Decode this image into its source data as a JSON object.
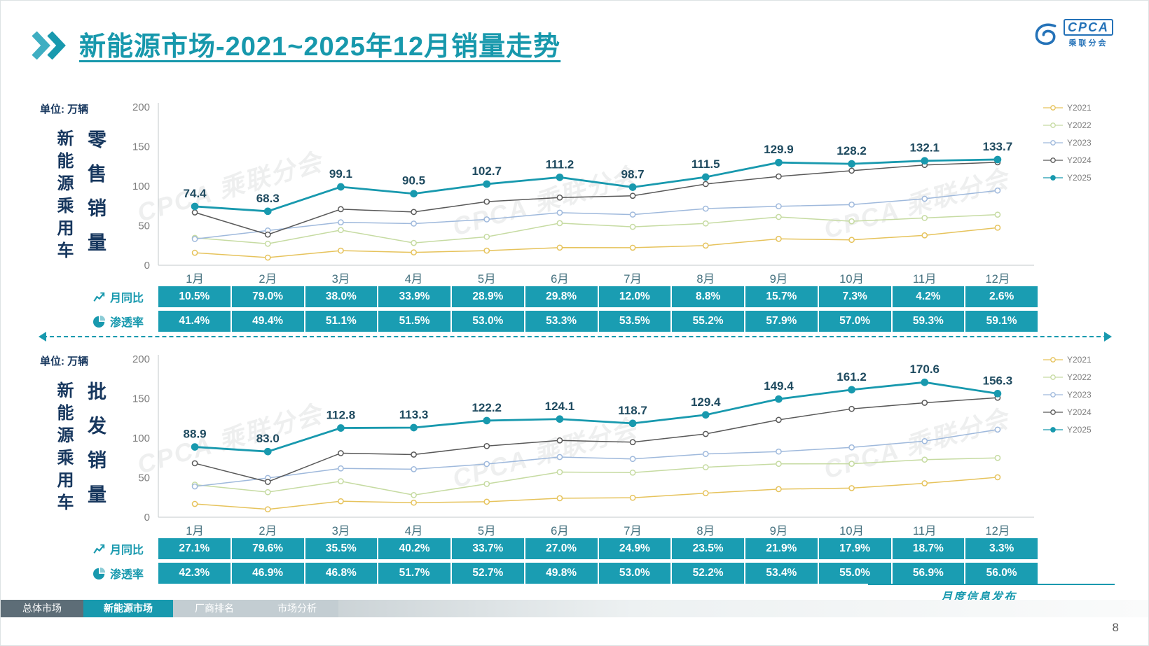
{
  "header": {
    "title": "新能源市场-2021~2025年12月销量走势"
  },
  "logo": {
    "name": "CPCA",
    "subtitle": "乘联分会"
  },
  "watermark": "CPCA 乘联分会",
  "colors": {
    "accent": "#1899AE",
    "table_cell": "#1A9DB2",
    "dark_label": "#17375E",
    "logo_blue": "#2472B8"
  },
  "chart_data": [
    {
      "type": "line",
      "title": "新能源乘用车零售销量",
      "unit_label": "单位: 万辆",
      "side_label": "新能源乘用车",
      "metric_label": "零售销量",
      "ylabel": "万辆",
      "ylim": [
        0,
        200
      ],
      "yticks": [
        0,
        50,
        100,
        150,
        200
      ],
      "grid": false,
      "legend_position": "right",
      "categories": [
        "1月",
        "2月",
        "3月",
        "4月",
        "5月",
        "6月",
        "7月",
        "8月",
        "9月",
        "10月",
        "11月",
        "12月"
      ],
      "series": [
        {
          "name": "Y2021",
          "color": "#E6C35C",
          "values": [
            15.8,
            9.7,
            18.5,
            16.3,
            18.5,
            22.3,
            22.2,
            24.9,
            33.4,
            32.1,
            37.8,
            47.5
          ]
        },
        {
          "name": "Y2022",
          "color": "#C6DBA2",
          "values": [
            34.7,
            27.2,
            44.5,
            28.2,
            36.0,
            53.2,
            48.6,
            52.9,
            61.1,
            55.6,
            59.8,
            64.0
          ]
        },
        {
          "name": "Y2023",
          "color": "#9FB9DC",
          "values": [
            33.2,
            43.9,
            54.3,
            52.7,
            58.0,
            66.5,
            64.1,
            71.6,
            74.6,
            76.7,
            84.1,
            94.5
          ]
        },
        {
          "name": "Y2024",
          "color": "#595959",
          "values": [
            66.8,
            38.8,
            70.9,
            67.4,
            80.4,
            85.6,
            87.8,
            102.7,
            112.3,
            119.6,
            126.8,
            130.2
          ]
        },
        {
          "name": "Y2025",
          "color": "#1899AE",
          "values": [
            74.4,
            68.3,
            99.1,
            90.5,
            102.7,
            111.2,
            98.7,
            111.5,
            129.9,
            128.2,
            132.1,
            133.7
          ],
          "bold": true,
          "labeled": true
        }
      ],
      "rows": [
        {
          "icon": "line-chart-icon",
          "label": "月同比",
          "values": [
            "10.5%",
            "79.0%",
            "38.0%",
            "33.9%",
            "28.9%",
            "29.8%",
            "12.0%",
            "8.8%",
            "15.7%",
            "7.3%",
            "4.2%",
            "2.6%"
          ]
        },
        {
          "icon": "pie-chart-icon",
          "label": "渗透率",
          "values": [
            "41.4%",
            "49.4%",
            "51.1%",
            "51.5%",
            "53.0%",
            "53.3%",
            "53.5%",
            "55.2%",
            "57.9%",
            "57.0%",
            "59.3%",
            "59.1%"
          ]
        }
      ]
    },
    {
      "type": "line",
      "title": "新能源乘用车批发销量",
      "unit_label": "单位: 万辆",
      "side_label": "新能源乘用车",
      "metric_label": "批发销量",
      "ylabel": "万辆",
      "ylim": [
        0,
        200
      ],
      "yticks": [
        0,
        50,
        100,
        150,
        200
      ],
      "grid": false,
      "legend_position": "right",
      "categories": [
        "1月",
        "2月",
        "3月",
        "4月",
        "5月",
        "6月",
        "7月",
        "8月",
        "9月",
        "10月",
        "11月",
        "12月"
      ],
      "series": [
        {
          "name": "Y2021",
          "color": "#E6C35C",
          "values": [
            16.8,
            10.0,
            20.2,
            18.4,
            19.6,
            24.0,
            24.6,
            30.4,
            35.5,
            36.8,
            42.9,
            50.5
          ]
        },
        {
          "name": "Y2022",
          "color": "#C6DBA2",
          "values": [
            41.2,
            31.7,
            45.5,
            28.0,
            42.1,
            57.1,
            56.4,
            63.2,
            67.5,
            67.6,
            72.8,
            75.0
          ]
        },
        {
          "name": "Y2023",
          "color": "#9FB9DC",
          "values": [
            38.9,
            49.6,
            61.7,
            60.7,
            67.3,
            76.1,
            73.7,
            80.0,
            83.0,
            88.3,
            96.2,
            110.8
          ]
        },
        {
          "name": "Y2024",
          "color": "#595959",
          "values": [
            68.2,
            44.7,
            81.0,
            79.2,
            90.0,
            97.1,
            94.9,
            105.3,
            123.1,
            137.0,
            144.7,
            151.1
          ]
        },
        {
          "name": "Y2025",
          "color": "#1899AE",
          "values": [
            88.9,
            83.0,
            112.8,
            113.3,
            122.2,
            124.1,
            118.7,
            129.4,
            149.4,
            161.2,
            170.6,
            156.3
          ],
          "bold": true,
          "labeled": true
        }
      ],
      "rows": [
        {
          "icon": "line-chart-icon",
          "label": "月同比",
          "values": [
            "27.1%",
            "79.6%",
            "35.5%",
            "40.2%",
            "33.7%",
            "27.0%",
            "24.9%",
            "23.5%",
            "21.9%",
            "17.9%",
            "18.7%",
            "3.3%"
          ]
        },
        {
          "icon": "pie-chart-icon",
          "label": "渗透率",
          "values": [
            "42.3%",
            "46.9%",
            "46.8%",
            "51.7%",
            "52.7%",
            "49.8%",
            "53.0%",
            "52.2%",
            "53.4%",
            "55.0%",
            "56.9%",
            "56.0%"
          ]
        }
      ]
    }
  ],
  "footer": {
    "tabs": [
      {
        "name": "tab-overall-market",
        "label": "总体市场",
        "variant": "dark"
      },
      {
        "name": "tab-nev-market",
        "label": "新能源市场",
        "variant": "active"
      },
      {
        "name": "tab-oem-ranking",
        "label": "厂商排名",
        "variant": "light"
      },
      {
        "name": "tab-market-analysis",
        "label": "市场分析",
        "variant": "light"
      }
    ],
    "publication": "月度信息发布",
    "page": "8"
  }
}
